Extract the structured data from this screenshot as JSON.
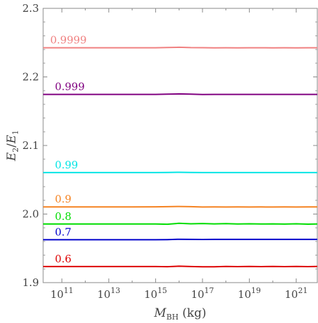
{
  "chart_data": {
    "type": "line",
    "xlabel": "M_BH (kg)",
    "xlabel_main": "M",
    "xlabel_sub": "BH",
    "xlabel_unit": " (kg)",
    "ylabel": "E2/E1",
    "ylabel_parts": {
      "a": "E",
      "a_sub": "2",
      "slash": "/",
      "b": "E",
      "b_sub": "1"
    },
    "x_scale": "log",
    "xlim_log10": [
      10.2,
      21.9
    ],
    "ylim": [
      1.9,
      2.3
    ],
    "x_ticks": [
      {
        "exp": 11,
        "base": "10",
        "sup": "11"
      },
      {
        "exp": 13,
        "base": "10",
        "sup": "13"
      },
      {
        "exp": 15,
        "base": "10",
        "sup": "15"
      },
      {
        "exp": 17,
        "base": "10",
        "sup": "17"
      },
      {
        "exp": 19,
        "base": "10",
        "sup": "19"
      },
      {
        "exp": 21,
        "base": "10",
        "sup": "21"
      }
    ],
    "y_ticks": [
      {
        "value": 1.9,
        "label": "1.9"
      },
      {
        "value": 2.0,
        "label": "2.0"
      },
      {
        "value": 2.1,
        "label": "2.1"
      },
      {
        "value": 2.2,
        "label": "2.2"
      },
      {
        "value": 2.3,
        "label": "2.3"
      }
    ],
    "grid": false,
    "x_log10": [
      10.2,
      11,
      12,
      13,
      14,
      15,
      15.5,
      16,
      16.5,
      17,
      17.5,
      18,
      18.5,
      19,
      19.5,
      20,
      20.5,
      21,
      21.5,
      21.9
    ],
    "series": [
      {
        "name": "0.9999",
        "color": "#f08080",
        "label_log10": 10.5,
        "values": [
          2.2425,
          2.2425,
          2.2425,
          2.2425,
          2.2425,
          2.2425,
          2.2428,
          2.2432,
          2.2427,
          2.2426,
          2.2424,
          2.2425,
          2.2424,
          2.2425,
          2.2425,
          2.2424,
          2.2425,
          2.2424,
          2.2425,
          2.2425
        ]
      },
      {
        "name": "0.999",
        "color": "#800080",
        "label_log10": 10.7,
        "values": [
          2.1745,
          2.1745,
          2.1745,
          2.1745,
          2.1745,
          2.1745,
          2.1748,
          2.1752,
          2.1748,
          2.1744,
          2.1745,
          2.1745,
          2.1745,
          2.1745,
          2.1745,
          2.1745,
          2.1745,
          2.1745,
          2.1745,
          2.1745
        ]
      },
      {
        "name": "0.99",
        "color": "#00e5e5",
        "label_log10": 10.7,
        "values": [
          2.0605,
          2.0605,
          2.0605,
          2.0605,
          2.0605,
          2.0605,
          2.0607,
          2.0609,
          2.0607,
          2.0605,
          2.0605,
          2.0605,
          2.0605,
          2.0605,
          2.0605,
          2.0605,
          2.0605,
          2.0605,
          2.0605,
          2.0605
        ]
      },
      {
        "name": "0.9",
        "color": "#f58220",
        "label_log10": 10.7,
        "values": [
          2.0105,
          2.0105,
          2.0105,
          2.0105,
          2.0105,
          2.0106,
          2.0108,
          2.0111,
          2.0108,
          2.0103,
          2.0104,
          2.0103,
          2.0104,
          2.0103,
          2.0104,
          2.0103,
          2.0104,
          2.0103,
          2.0104,
          2.0104
        ]
      },
      {
        "name": "0.8",
        "color": "#00dd00",
        "label_log10": 10.7,
        "values": [
          1.9855,
          1.9855,
          1.9855,
          1.9855,
          1.9855,
          1.9855,
          1.9852,
          1.9865,
          1.9858,
          1.9862,
          1.9857,
          1.9861,
          1.9856,
          1.9858,
          1.9855,
          1.9857,
          1.9854,
          1.9858,
          1.9853,
          1.9856
        ]
      },
      {
        "name": "0.7",
        "color": "#0000cc",
        "label_log10": 10.7,
        "values": [
          1.9625,
          1.9625,
          1.9625,
          1.9625,
          1.9625,
          1.9625,
          1.9627,
          1.9632,
          1.963,
          1.9629,
          1.963,
          1.963,
          1.963,
          1.963,
          1.963,
          1.963,
          1.963,
          1.963,
          1.963,
          1.963
        ]
      },
      {
        "name": "0.6",
        "color": "#dd0000",
        "label_log10": 10.7,
        "values": [
          1.9235,
          1.9235,
          1.9235,
          1.9235,
          1.9235,
          1.9235,
          1.9232,
          1.924,
          1.9235,
          1.923,
          1.9231,
          1.9236,
          1.9233,
          1.9237,
          1.9234,
          1.9236,
          1.9233,
          1.9237,
          1.9234,
          1.9236
        ]
      }
    ]
  }
}
